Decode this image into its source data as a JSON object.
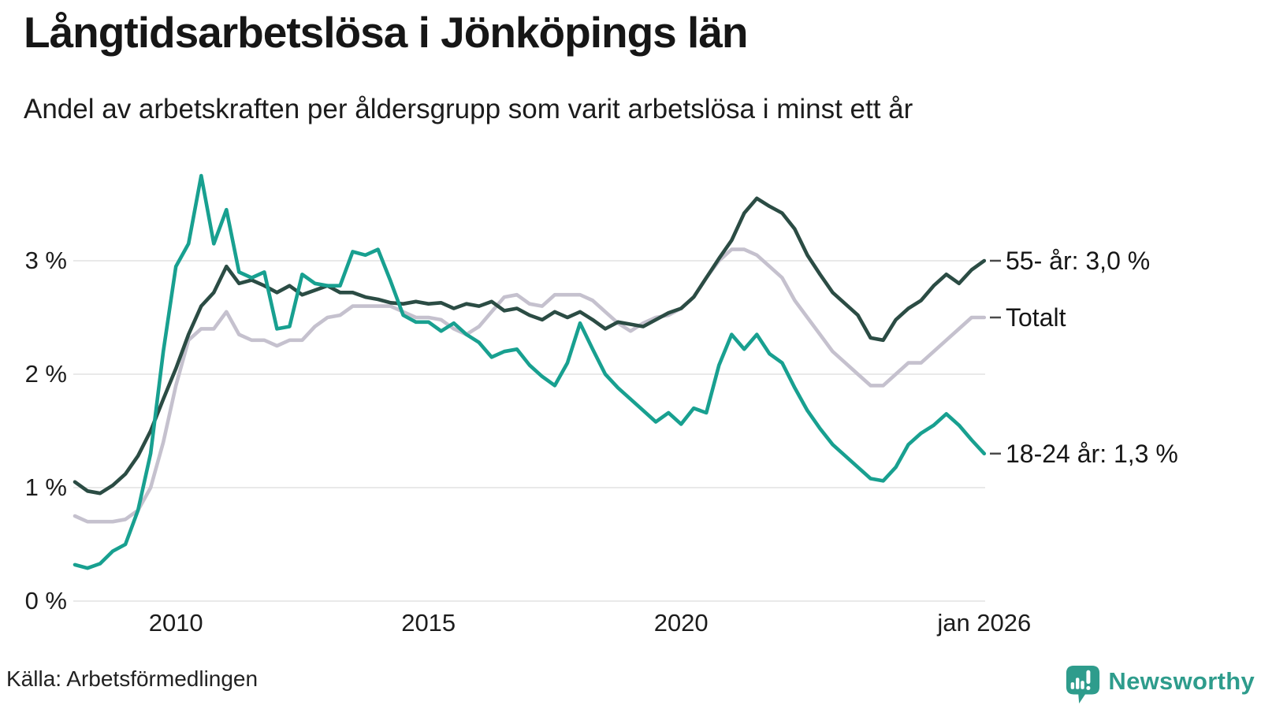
{
  "header": {
    "title": "Långtidsarbetslösa i Jönköpings län",
    "subtitle": "Andel av arbetskraften per åldersgrupp som varit arbetslösa i minst ett år"
  },
  "footer": {
    "source": "Källa: Arbetsförmedlingen",
    "brand_name": "Newsworthy"
  },
  "colors": {
    "teal_line": "#18a090",
    "dark_green_line": "#2b4c44",
    "gray_line": "#c5c1ce",
    "gridline": "#e9e9e9",
    "end_tick": "#4a4a4a",
    "text": "#1c1c1c",
    "brand_teal": "#2e9c8c"
  },
  "chart_data": {
    "type": "line",
    "title": "Långtidsarbetslösa i Jönköpings län",
    "xlabel": "",
    "ylabel": "Andel av arbetskraften (%)",
    "xlim": [
      2008,
      2026.1
    ],
    "ylim": [
      0,
      3.9
    ],
    "grid": "horizontal",
    "legend_position": "right-end-labels",
    "draw_order": [
      1,
      0,
      2
    ],
    "x": [
      2008,
      2008.25,
      2008.5,
      2008.75,
      2009,
      2009.25,
      2009.5,
      2009.75,
      2010,
      2010.25,
      2010.5,
      2010.75,
      2011,
      2011.25,
      2011.5,
      2011.75,
      2012,
      2012.25,
      2012.5,
      2012.75,
      2013,
      2013.25,
      2013.5,
      2013.75,
      2014,
      2014.25,
      2014.5,
      2014.75,
      2015,
      2015.25,
      2015.5,
      2015.75,
      2016,
      2016.25,
      2016.5,
      2016.75,
      2017,
      2017.25,
      2017.5,
      2017.75,
      2018,
      2018.25,
      2018.5,
      2018.75,
      2019,
      2019.25,
      2019.5,
      2019.75,
      2020,
      2020.25,
      2020.5,
      2020.75,
      2021,
      2021.25,
      2021.5,
      2021.75,
      2022,
      2022.25,
      2022.5,
      2022.75,
      2023,
      2023.25,
      2023.5,
      2023.75,
      2024,
      2024.25,
      2024.5,
      2024.75,
      2025,
      2025.25,
      2025.5,
      2025.75,
      2026
    ],
    "series": [
      {
        "name": "55- år",
        "end_label": "55- år: 3,0 %",
        "end_value_label": "3,0 %",
        "color": "#2b4c44",
        "values": [
          1.05,
          0.97,
          0.95,
          1.02,
          1.12,
          1.28,
          1.5,
          1.78,
          2.05,
          2.35,
          2.6,
          2.72,
          2.95,
          2.8,
          2.83,
          2.78,
          2.72,
          2.78,
          2.7,
          2.74,
          2.78,
          2.72,
          2.72,
          2.68,
          2.66,
          2.63,
          2.62,
          2.64,
          2.62,
          2.63,
          2.58,
          2.62,
          2.6,
          2.64,
          2.56,
          2.58,
          2.52,
          2.48,
          2.55,
          2.5,
          2.55,
          2.48,
          2.4,
          2.46,
          2.44,
          2.42,
          2.48,
          2.54,
          2.58,
          2.68,
          2.85,
          3.02,
          3.18,
          3.42,
          3.55,
          3.48,
          3.42,
          3.28,
          3.05,
          2.88,
          2.72,
          2.62,
          2.52,
          2.32,
          2.3,
          2.48,
          2.58,
          2.65,
          2.78,
          2.88,
          2.8,
          2.92,
          3.0
        ]
      },
      {
        "name": "Totalt",
        "end_label": "Totalt",
        "end_value_label": "",
        "color": "#c5c1ce",
        "values": [
          0.75,
          0.7,
          0.7,
          0.7,
          0.72,
          0.8,
          1.0,
          1.4,
          1.9,
          2.3,
          2.4,
          2.4,
          2.55,
          2.35,
          2.3,
          2.3,
          2.25,
          2.3,
          2.3,
          2.42,
          2.5,
          2.52,
          2.6,
          2.6,
          2.6,
          2.6,
          2.55,
          2.5,
          2.5,
          2.48,
          2.4,
          2.35,
          2.42,
          2.55,
          2.68,
          2.7,
          2.62,
          2.6,
          2.7,
          2.7,
          2.7,
          2.65,
          2.55,
          2.45,
          2.38,
          2.45,
          2.5,
          2.52,
          2.58,
          2.68,
          2.85,
          3.0,
          3.1,
          3.1,
          3.05,
          2.95,
          2.85,
          2.65,
          2.5,
          2.35,
          2.2,
          2.1,
          2.0,
          1.9,
          1.9,
          2.0,
          2.1,
          2.1,
          2.2,
          2.3,
          2.4,
          2.5,
          2.5
        ]
      },
      {
        "name": "18-24 år",
        "end_label": "18-24 år: 1,3 %",
        "end_value_label": "1,3 %",
        "color": "#18a090",
        "values": [
          0.32,
          0.29,
          0.33,
          0.44,
          0.5,
          0.8,
          1.3,
          2.2,
          2.95,
          3.15,
          3.75,
          3.15,
          3.45,
          2.9,
          2.85,
          2.9,
          2.4,
          2.42,
          2.88,
          2.8,
          2.78,
          2.78,
          3.08,
          3.05,
          3.1,
          2.82,
          2.52,
          2.46,
          2.46,
          2.38,
          2.45,
          2.35,
          2.28,
          2.15,
          2.2,
          2.22,
          2.08,
          1.98,
          1.9,
          2.1,
          2.45,
          2.22,
          2.0,
          1.88,
          1.78,
          1.68,
          1.58,
          1.66,
          1.56,
          1.7,
          1.66,
          2.08,
          2.35,
          2.22,
          2.35,
          2.18,
          2.1,
          1.88,
          1.68,
          1.52,
          1.38,
          1.28,
          1.18,
          1.08,
          1.06,
          1.18,
          1.38,
          1.48,
          1.55,
          1.65,
          1.55,
          1.42,
          1.3
        ]
      }
    ],
    "yticks": [
      {
        "value": 3,
        "label": "3 %"
      },
      {
        "value": 2,
        "label": "2 %"
      },
      {
        "value": 1,
        "label": "1 %"
      },
      {
        "value": 0,
        "label": "0 %"
      }
    ],
    "xticks": [
      {
        "value": 2010,
        "label": "2010"
      },
      {
        "value": 2015,
        "label": "2015"
      },
      {
        "value": 2020,
        "label": "2020"
      },
      {
        "value": 2026,
        "label": "jan 2026"
      }
    ]
  }
}
